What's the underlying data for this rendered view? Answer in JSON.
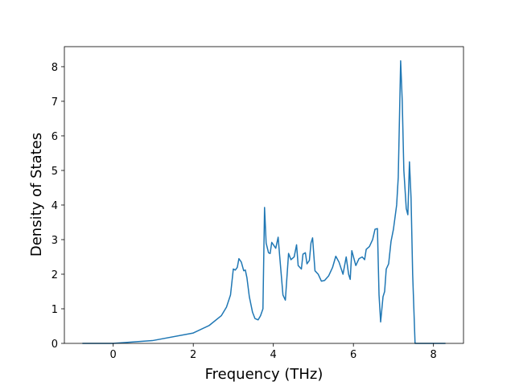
{
  "chart_data": {
    "type": "line",
    "xlabel": "Frequency (THz)",
    "ylabel": "Density of States",
    "xlim": [
      -1.22,
      8.75
    ],
    "ylim": [
      0,
      8.58
    ],
    "xticks": [
      0,
      2,
      4,
      6,
      8
    ],
    "yticks": [
      0,
      1,
      2,
      3,
      4,
      5,
      6,
      7,
      8
    ],
    "series": [
      {
        "color": "#1f77b4",
        "x": [
          -0.77,
          0.0,
          0.98,
          2.0,
          2.4,
          2.7,
          2.83,
          2.93,
          3.0,
          3.05,
          3.1,
          3.14,
          3.2,
          3.26,
          3.3,
          3.34,
          3.4,
          3.48,
          3.54,
          3.62,
          3.68,
          3.74,
          3.78,
          3.82,
          3.88,
          3.92,
          3.96,
          4.06,
          4.12,
          4.16,
          4.24,
          4.3,
          4.38,
          4.44,
          4.52,
          4.58,
          4.62,
          4.7,
          4.74,
          4.8,
          4.84,
          4.9,
          4.94,
          4.98,
          5.04,
          5.12,
          5.2,
          5.28,
          5.38,
          5.48,
          5.56,
          5.64,
          5.74,
          5.82,
          5.88,
          5.92,
          5.96,
          6.06,
          6.14,
          6.22,
          6.28,
          6.32,
          6.4,
          6.48,
          6.54,
          6.6,
          6.64,
          6.68,
          6.74,
          6.78,
          6.82,
          6.88,
          6.94,
          7.0,
          7.08,
          7.12,
          7.18,
          7.22,
          7.26,
          7.32,
          7.36,
          7.4,
          7.44,
          7.48,
          7.54,
          8.3
        ],
        "values": [
          0,
          0.0,
          0.08,
          0.3,
          0.52,
          0.8,
          1.05,
          1.4,
          2.15,
          2.12,
          2.2,
          2.45,
          2.35,
          2.1,
          2.12,
          1.9,
          1.35,
          0.9,
          0.72,
          0.68,
          0.8,
          1.0,
          3.93,
          2.9,
          2.62,
          2.6,
          2.92,
          2.75,
          3.07,
          2.5,
          1.4,
          1.25,
          2.6,
          2.42,
          2.5,
          2.85,
          2.25,
          2.15,
          2.58,
          2.62,
          2.3,
          2.4,
          2.9,
          3.05,
          2.1,
          2.0,
          1.8,
          1.82,
          1.95,
          2.2,
          2.52,
          2.35,
          2.0,
          2.5,
          2.0,
          1.85,
          2.68,
          2.25,
          2.45,
          2.5,
          2.42,
          2.72,
          2.8,
          3.0,
          3.3,
          3.32,
          1.4,
          0.62,
          1.35,
          1.5,
          2.15,
          2.3,
          2.95,
          3.3,
          4.0,
          4.8,
          8.17,
          7.0,
          5.0,
          3.9,
          3.72,
          5.25,
          4.2,
          2.0,
          0,
          0
        ]
      }
    ]
  }
}
